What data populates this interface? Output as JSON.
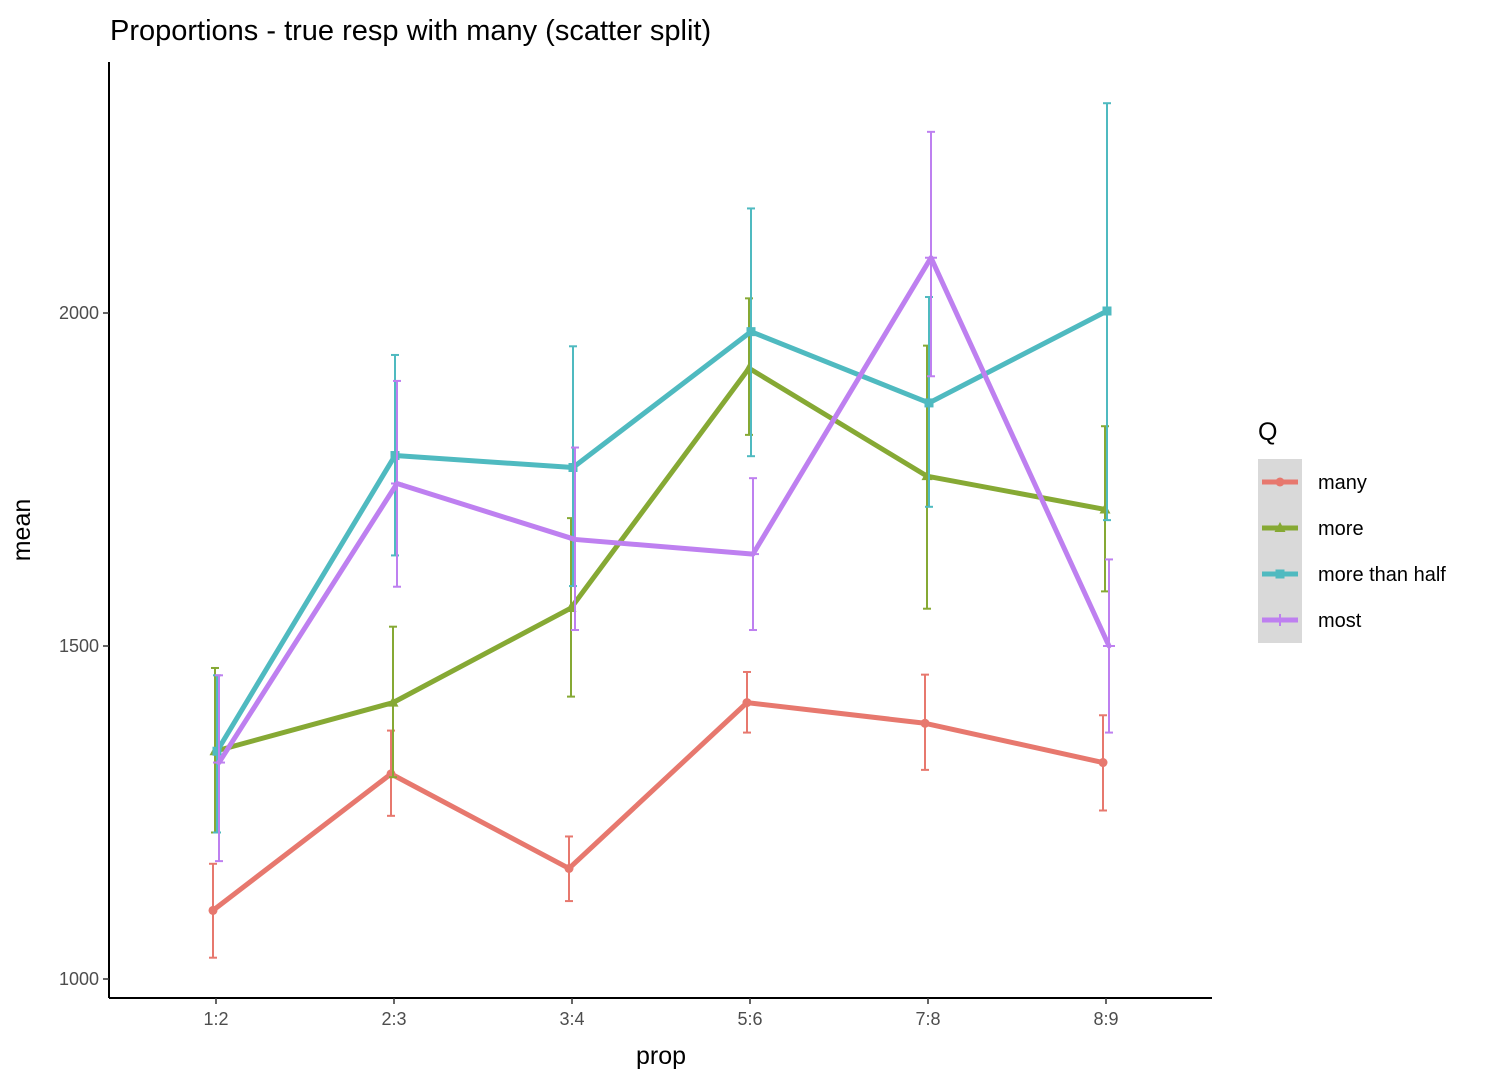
{
  "chart_data": {
    "type": "line",
    "title": "Proportions - true resp with many (scatter split)",
    "xlabel": "prop",
    "ylabel": "mean",
    "categories": [
      "1:2",
      "2:3",
      "3:4",
      "5:6",
      "7:8",
      "8:9"
    ],
    "yticks": [
      1000,
      1500,
      2000
    ],
    "ylim": [
      970,
      2330
    ],
    "legend": {
      "title": "Q",
      "placement": "right"
    },
    "series": [
      {
        "name": "many",
        "color": "#E7786E",
        "marker": "circle",
        "values": [
          1103,
          1308,
          1166,
          1415,
          1384,
          1325
        ],
        "lower": [
          1032,
          1245,
          1117,
          1370,
          1314,
          1253
        ],
        "upper": [
          1173,
          1373,
          1214,
          1461,
          1457,
          1396
        ]
      },
      {
        "name": "more",
        "color": "#86A934",
        "marker": "triangle",
        "values": [
          1342,
          1415,
          1557,
          1917,
          1755,
          1705
        ],
        "lower": [
          1220,
          1303,
          1424,
          1817,
          1556,
          1582
        ],
        "upper": [
          1467,
          1529,
          1692,
          2022,
          1951,
          1830
        ]
      },
      {
        "name": "more than half",
        "color": "#4FBAC0",
        "marker": "square",
        "values": [
          1342,
          1786,
          1768,
          1972,
          1865,
          2003
        ],
        "lower": [
          1220,
          1636,
          1590,
          1785,
          1709,
          1689
        ],
        "upper": [
          1456,
          1937,
          1950,
          2157,
          2024,
          2315
        ]
      },
      {
        "name": "most",
        "color": "#BE80F0",
        "marker": "plus",
        "values": [
          1325,
          1744,
          1660,
          1638,
          2083,
          1500
        ],
        "lower": [
          1177,
          1589,
          1524,
          1524,
          1905,
          1370
        ],
        "upper": [
          1456,
          1898,
          1798,
          1752,
          2272,
          1630
        ]
      }
    ]
  }
}
